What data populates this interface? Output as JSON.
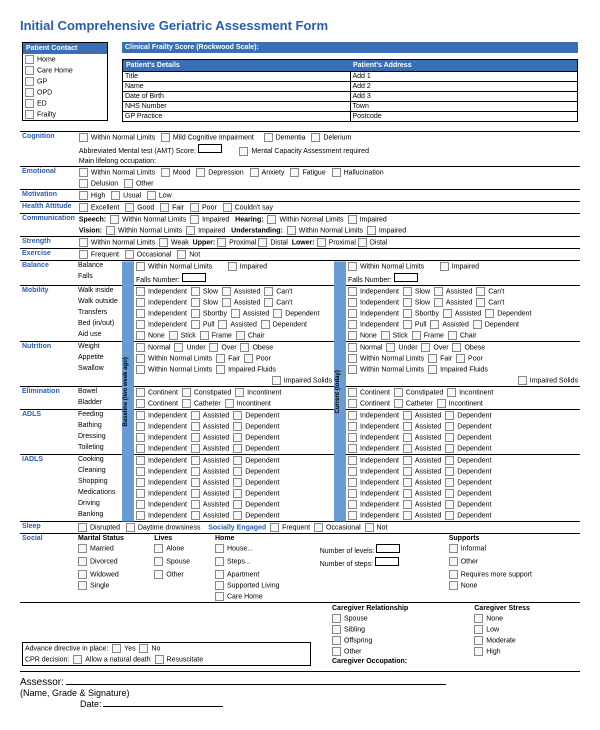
{
  "title": "Initial Comprehensive Geriatric Assessment Form",
  "patient_contact": {
    "header": "Patient Contact",
    "items": [
      "Home",
      "Care Home",
      "GP",
      "OPD",
      "ED",
      "Frailty"
    ]
  },
  "cfs": {
    "header": "Clinical Frailty Score (Rockwood Scale):",
    "details_hdr": "Patient's Details",
    "address_hdr": "Patient's Address",
    "left": [
      "Title",
      "Name",
      "Date of Birth",
      "NHS Number",
      "GP Practice"
    ],
    "right": [
      "Add 1",
      "Add 2",
      "Add 3",
      "Town",
      "Postcode"
    ]
  },
  "cognition": {
    "label": "Cognition",
    "opts": [
      "Within Normal Limits",
      "Mild Cognitive Impairment",
      "Dementia",
      "Delerium"
    ],
    "sub1": "Abbreviated Mental test (AMT) Score:",
    "sub2": "Mental Capacity Assessment required",
    "sub3": "Main lifelong occupation:"
  },
  "emotional": {
    "label": "Emotional",
    "opts": [
      "Within Normal Limits",
      "Mood",
      "Depression",
      "Anxiety",
      "Fatigue",
      "Hallucination"
    ],
    "opts2": [
      "Delusion",
      "Other"
    ]
  },
  "motivation": {
    "label": "Motivation",
    "opts": [
      "High",
      "Usual",
      "Low"
    ]
  },
  "health": {
    "label": "Health Attitude",
    "opts": [
      "Excellent",
      "Good",
      "Fair",
      "Poor",
      "Couldn't say"
    ]
  },
  "comm": {
    "label": "Communication",
    "speech": "Speech:",
    "hearing": "Hearing:",
    "vision": "Vision:",
    "understanding": "Understanding:",
    "o": [
      "Within Normal Limits",
      "Impaired"
    ]
  },
  "strength": {
    "label": "Strength",
    "o": [
      "Within Normal Limits",
      "Weak"
    ],
    "upper": "Upper:",
    "lower": "Lower:",
    "pd": [
      "Proximal",
      "Distal"
    ]
  },
  "exercise": {
    "label": "Exercise",
    "o": [
      "Frequent",
      "Occasional",
      "Not"
    ]
  },
  "baseline_hdr": "Baseline (two week ago)",
  "current_hdr": "Current (today)",
  "balance": {
    "label": "Balance",
    "rows": [
      "Balance",
      "Falls"
    ],
    "falls_num": "Falls    Number:",
    "o": [
      "Within Normal Limits",
      "Impaired"
    ]
  },
  "mobility": {
    "label": "Mobility",
    "rows": [
      "Walk inside",
      "Walk outside",
      "Transfers",
      "Bed (in/out)",
      "Aid use"
    ],
    "o1": [
      "Independent",
      "Slow",
      "Assisted",
      "Can't"
    ],
    "o2": [
      "Independent",
      "Sbortby",
      "Assisted",
      "Dependent"
    ],
    "o3": [
      "Independent",
      "Pull",
      "Assisted",
      "Dependent"
    ],
    "o4": [
      "None",
      "Stick",
      "Frame",
      "Chair"
    ]
  },
  "nutrition": {
    "label": "Nutrition",
    "rows": [
      "Weight",
      "Appetite",
      "Swallow"
    ],
    "o1": [
      "Normal",
      "Under",
      "Over",
      "Obese"
    ],
    "o2": [
      "Within Normal Limits",
      "Fair",
      "Poor"
    ],
    "o3": [
      "Within Normal Limits",
      "Impaired Fluids"
    ],
    "o3b": "Impaired Solids"
  },
  "elim": {
    "label": "Elimination",
    "rows": [
      "Bowel",
      "Bladder"
    ],
    "o1": [
      "Continent",
      "Constipated",
      "Incontinent"
    ],
    "o2": [
      "Continent",
      "Catheter",
      "Incontinent"
    ]
  },
  "adls": {
    "label": "ADLS",
    "rows": [
      "Feeding",
      "Bathing",
      "Dressing",
      "Toileting"
    ],
    "o": [
      "Independent",
      "Assisted",
      "Dependent"
    ]
  },
  "iadls": {
    "label": "IADLS",
    "rows": [
      "Cooking",
      "Cleaning",
      "Shopping",
      "Medications",
      "Driving",
      "Banking"
    ],
    "o": [
      "Independent",
      "Assisted",
      "Dependent"
    ]
  },
  "sleep": {
    "label": "Sleep",
    "o": [
      "Disrupted",
      "Daytime drowsiness"
    ],
    "se": "Socially Engaged",
    "seo": [
      "Frequent",
      "Occasional",
      "Not"
    ]
  },
  "social": {
    "label": "Social",
    "marital": "Marital Status",
    "marital_o": [
      "Married",
      "Divorced",
      "Widowed",
      "Single"
    ],
    "lives": "Lives",
    "lives_o": [
      "Alone",
      "Spouse",
      "Other"
    ],
    "home": "Home",
    "home_o": [
      "House...",
      "Steps...",
      "Apartment",
      "Supported Living",
      "Care Home"
    ],
    "levels": "Number of levels:",
    "steps": "Number of steps:",
    "supports": "Supports",
    "supports_o": [
      "Informal",
      "Other",
      "Requires more support",
      "None"
    ],
    "cg_rel": "Caregiver Relationship",
    "cg_rel_o": [
      "Spouse",
      "Sibling",
      "Offspring",
      "Other"
    ],
    "cg_stress": "Caregiver Stress",
    "cg_stress_o": [
      "None",
      "Low",
      "Moderate",
      "High"
    ],
    "cg_occ": "Caregiver Occupation:"
  },
  "adv": {
    "label": "Advance directive in place:",
    "o": [
      "Yes",
      "No"
    ],
    "cpr": "CPR decision:",
    "cpr_o": [
      "Allow a natural death",
      "Resuscitate"
    ]
  },
  "footer": {
    "assessor": "Assessor:",
    "sig": "(Name, Grade & Signature)",
    "date": "Date:"
  },
  "colors": {
    "blue": "#3b6fb5",
    "lt": "#6a9cd4",
    "link": "#2a5db0"
  }
}
